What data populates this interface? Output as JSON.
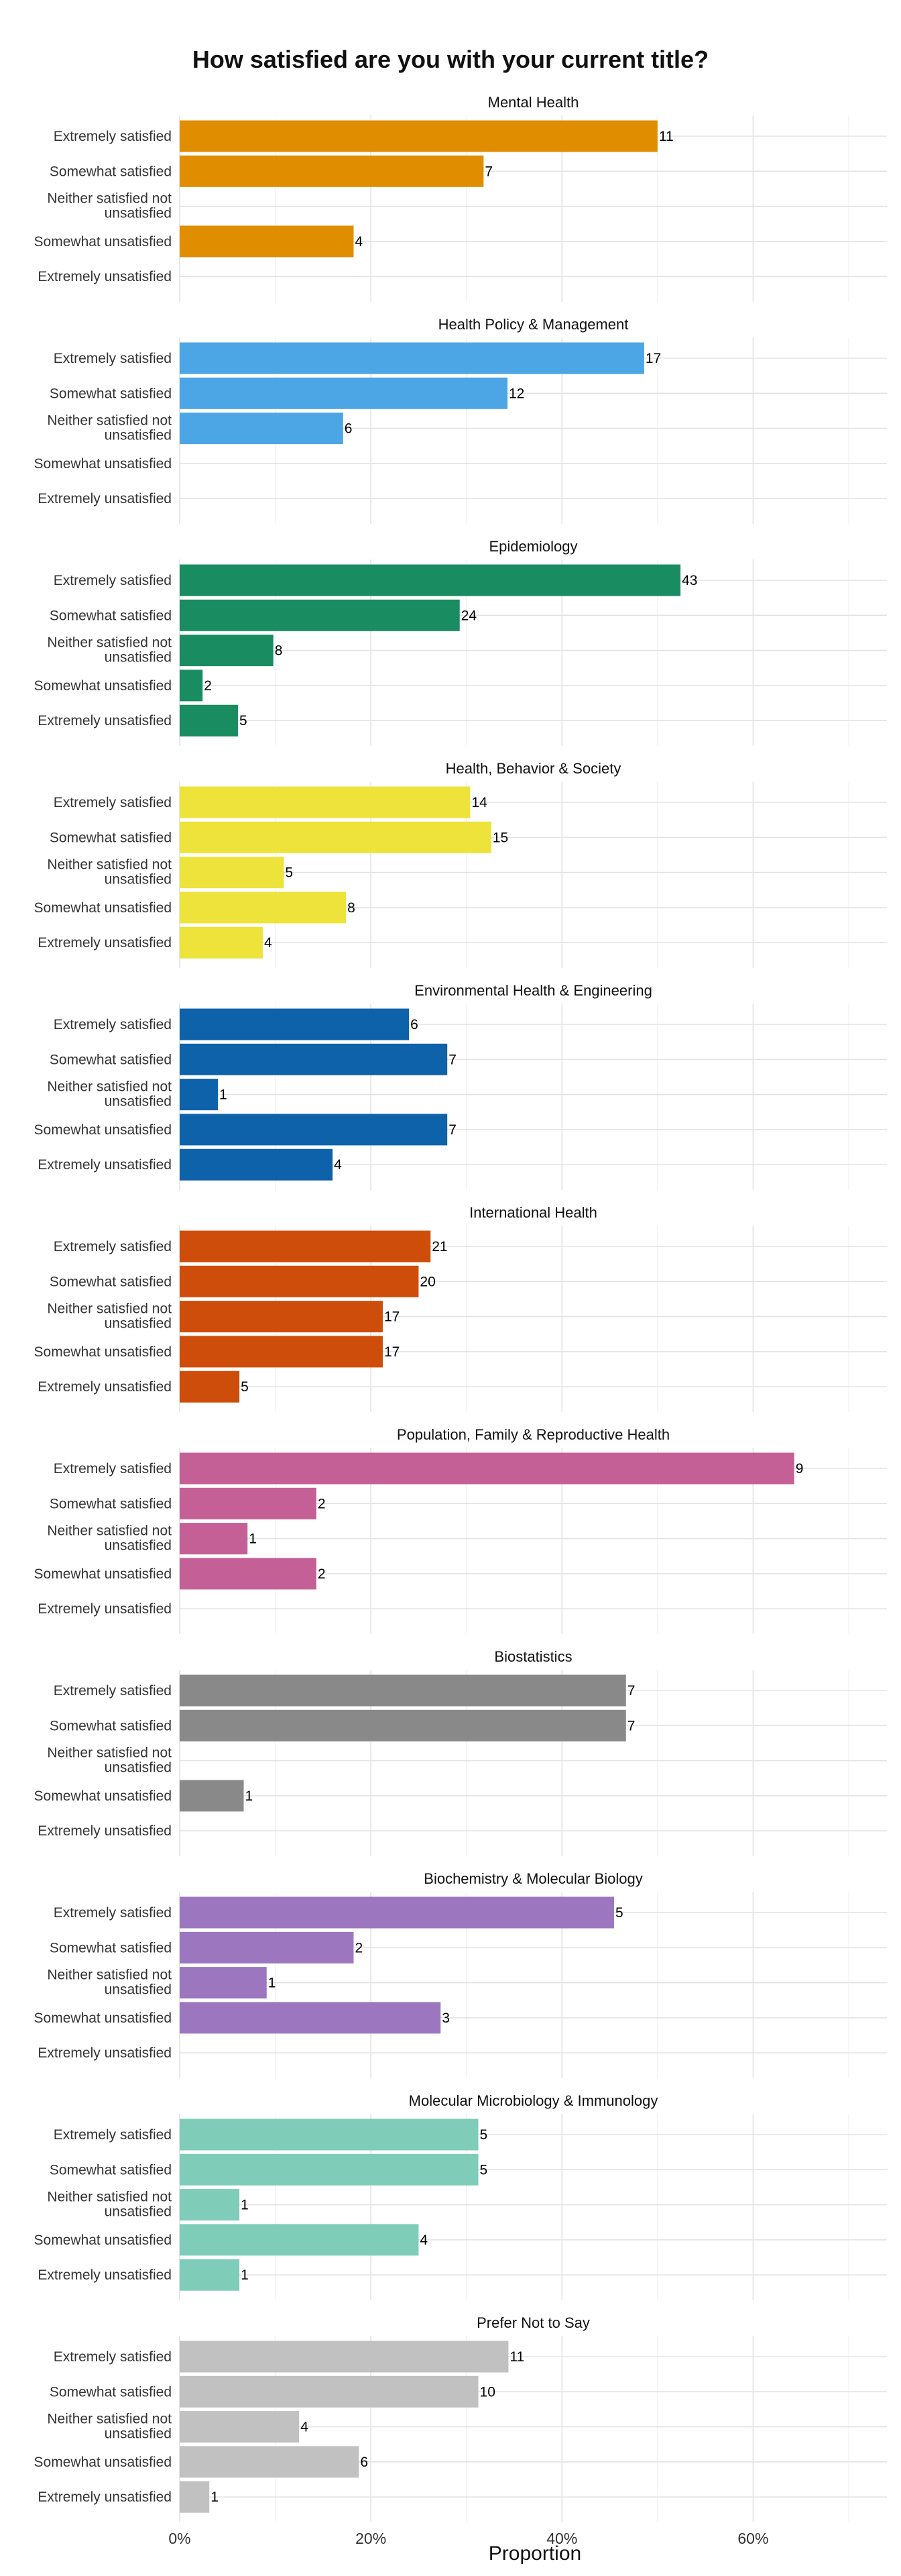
{
  "chart_data": {
    "type": "bar",
    "orientation": "horizontal",
    "title": "How satisfied are you with your current title?",
    "xlabel": "Proportion",
    "ylabel": "",
    "xlim": [
      0,
      0.74
    ],
    "x_ticks": [
      0,
      0.2,
      0.4,
      0.6
    ],
    "x_tick_labels": [
      "0%",
      "20%",
      "40%",
      "60%"
    ],
    "grid": true,
    "legend": "none",
    "categories": [
      [
        "Extremely satisfied"
      ],
      [
        "Somewhat satisfied"
      ],
      [
        "Neither satisfied not",
        "unsatisfied"
      ],
      [
        "Somewhat unsatisfied"
      ],
      [
        "Extremely unsatisfied"
      ]
    ],
    "panels": [
      {
        "name": "Mental Health",
        "color": "#E08E00",
        "counts": [
          11,
          7,
          null,
          4,
          null
        ],
        "proportions": [
          0.5,
          0.318,
          0,
          0.182,
          0
        ]
      },
      {
        "name": "Health Policy & Management",
        "color": "#4CA6E6",
        "counts": [
          17,
          12,
          6,
          null,
          null
        ],
        "proportions": [
          0.486,
          0.343,
          0.171,
          0,
          0
        ]
      },
      {
        "name": "Epidemiology",
        "color": "#198C62",
        "counts": [
          43,
          24,
          8,
          2,
          5
        ],
        "proportions": [
          0.524,
          0.293,
          0.098,
          0.024,
          0.061
        ]
      },
      {
        "name": "Health, Behavior & Society",
        "color": "#EDE33B",
        "counts": [
          14,
          15,
          5,
          8,
          4
        ],
        "proportions": [
          0.304,
          0.326,
          0.109,
          0.174,
          0.087
        ]
      },
      {
        "name": "Environmental Health & Engineering",
        "color": "#0E62AA",
        "counts": [
          6,
          7,
          1,
          7,
          4
        ],
        "proportions": [
          0.24,
          0.28,
          0.04,
          0.28,
          0.16
        ]
      },
      {
        "name": "International Health",
        "color": "#CF4D0A",
        "counts": [
          21,
          20,
          17,
          17,
          5
        ],
        "proportions": [
          0.2625,
          0.25,
          0.2125,
          0.2125,
          0.0625
        ]
      },
      {
        "name": "Population, Family & Reproductive Health",
        "color": "#C56097",
        "counts": [
          9,
          2,
          1,
          2,
          null
        ],
        "proportions": [
          0.643,
          0.143,
          0.071,
          0.143,
          0
        ]
      },
      {
        "name": "Biostatistics",
        "color": "#898989",
        "counts": [
          7,
          7,
          null,
          1,
          null
        ],
        "proportions": [
          0.467,
          0.467,
          0,
          0.067,
          0
        ]
      },
      {
        "name": "Biochemistry & Molecular Biology",
        "color": "#9D76C0",
        "counts": [
          5,
          2,
          1,
          3,
          null
        ],
        "proportions": [
          0.4545,
          0.182,
          0.091,
          0.273,
          0
        ]
      },
      {
        "name": "Molecular Microbiology & Immunology",
        "color": "#7FCDB9",
        "counts": [
          5,
          5,
          1,
          4,
          1
        ],
        "proportions": [
          0.3125,
          0.3125,
          0.0625,
          0.25,
          0.0625
        ]
      },
      {
        "name": "Prefer Not to Say",
        "color": "#C1C1C1",
        "counts": [
          11,
          10,
          4,
          6,
          1
        ],
        "proportions": [
          0.344,
          0.3125,
          0.125,
          0.1875,
          0.031
        ]
      }
    ]
  }
}
